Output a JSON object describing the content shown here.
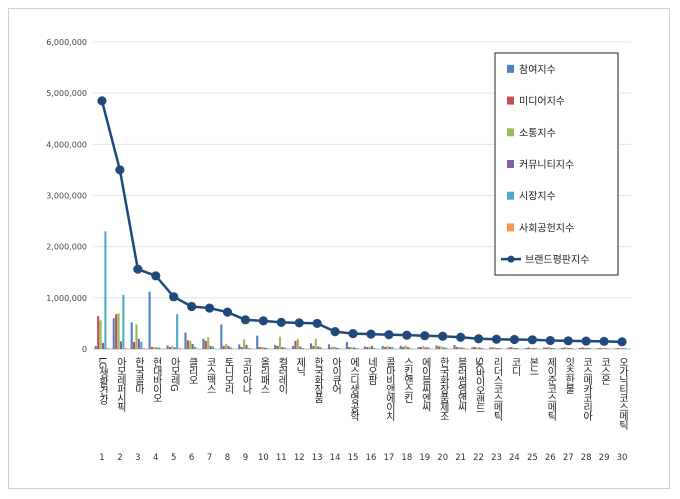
{
  "chart_data": {
    "type": "bar",
    "title": "",
    "xlabel": "",
    "ylabel": "",
    "ylim": [
      0,
      6000000
    ],
    "y_ticks": [
      "0",
      "1,000,000",
      "2,000,000",
      "3,000,000",
      "4,000,000",
      "5,000,000",
      "6,000,000"
    ],
    "grid": "horizontal",
    "legend_position": "top-right",
    "indices": [
      "1",
      "2",
      "3",
      "4",
      "5",
      "6",
      "7",
      "8",
      "9",
      "10",
      "11",
      "12",
      "13",
      "14",
      "15",
      "16",
      "17",
      "18",
      "19",
      "20",
      "21",
      "22",
      "23",
      "24",
      "25",
      "26",
      "27",
      "28",
      "29",
      "30"
    ],
    "categories": [
      "LG생활건강",
      "아모레퍼시픽",
      "한국콜마",
      "현대바이오",
      "아모레G",
      "클리오",
      "코스맥스",
      "토니모리",
      "코리아나",
      "올리패스",
      "컬러레이",
      "제닉",
      "한국화장품",
      "아이큐어",
      "에스디생명공학",
      "네오팜",
      "콜마비앤에이치",
      "스킨앤스킨",
      "에이블씨엔씨",
      "한국화장품제조",
      "블러썸엠앤씨",
      "SK바이오랜드",
      "리더스코스메틱",
      "코디",
      "본느",
      "제이준코스메틱",
      "잇츠한불",
      "코스메카코리아",
      "코스온",
      "오가닉티코스메틱"
    ],
    "series": [
      {
        "name": "참여지수",
        "color": "#4f81bd",
        "values": [
          60000,
          600000,
          520000,
          1120000,
          70000,
          320000,
          200000,
          480000,
          90000,
          260000,
          80000,
          60000,
          110000,
          90000,
          140000,
          50000,
          60000,
          60000,
          40000,
          70000,
          80000,
          35000,
          30000,
          25000,
          20000,
          30000,
          20000,
          20000,
          15000,
          15000
        ]
      },
      {
        "name": "미디어지수",
        "color": "#c0504d",
        "values": [
          640000,
          680000,
          140000,
          40000,
          40000,
          170000,
          160000,
          60000,
          40000,
          40000,
          60000,
          160000,
          60000,
          30000,
          40000,
          40000,
          40000,
          40000,
          40000,
          50000,
          40000,
          40000,
          30000,
          40000,
          30000,
          30000,
          30000,
          30000,
          20000,
          20000
        ]
      },
      {
        "name": "소통지수",
        "color": "#9bbb59",
        "values": [
          560000,
          700000,
          480000,
          40000,
          60000,
          160000,
          230000,
          100000,
          190000,
          40000,
          240000,
          200000,
          200000,
          50000,
          40000,
          40000,
          60000,
          70000,
          60000,
          50000,
          40000,
          30000,
          30000,
          30000,
          20000,
          40000,
          30000,
          30000,
          20000,
          20000
        ]
      },
      {
        "name": "커뮤니티지수",
        "color": "#8064a2",
        "values": [
          120000,
          150000,
          200000,
          30000,
          30000,
          100000,
          60000,
          60000,
          80000,
          30000,
          40000,
          50000,
          50000,
          30000,
          30000,
          60000,
          40000,
          40000,
          30000,
          30000,
          30000,
          30000,
          20000,
          20000,
          20000,
          20000,
          20000,
          20000,
          15000,
          15000
        ]
      },
      {
        "name": "시장지수",
        "color": "#4bacc6",
        "values": [
          2300000,
          1060000,
          140000,
          30000,
          680000,
          40000,
          50000,
          30000,
          20000,
          20000,
          30000,
          20000,
          40000,
          20000,
          20000,
          20000,
          40000,
          20000,
          40000,
          30000,
          20000,
          20000,
          20000,
          20000,
          20000,
          20000,
          20000,
          20000,
          15000,
          15000
        ]
      },
      {
        "name": "사회공헌지수",
        "color": "#f79646",
        "values": [
          20000,
          20000,
          20000,
          10000,
          20000,
          10000,
          10000,
          10000,
          10000,
          10000,
          10000,
          10000,
          10000,
          10000,
          10000,
          10000,
          10000,
          10000,
          10000,
          10000,
          10000,
          10000,
          10000,
          10000,
          10000,
          10000,
          10000,
          10000,
          10000,
          10000
        ]
      }
    ],
    "line_series": {
      "name": "브랜드평판지수",
      "color": "#1f497d",
      "values": [
        4850000,
        3500000,
        1560000,
        1430000,
        1020000,
        830000,
        800000,
        720000,
        570000,
        550000,
        520000,
        510000,
        500000,
        340000,
        300000,
        290000,
        280000,
        270000,
        260000,
        250000,
        230000,
        200000,
        190000,
        185000,
        180000,
        165000,
        160000,
        155000,
        150000,
        140000
      ]
    }
  }
}
